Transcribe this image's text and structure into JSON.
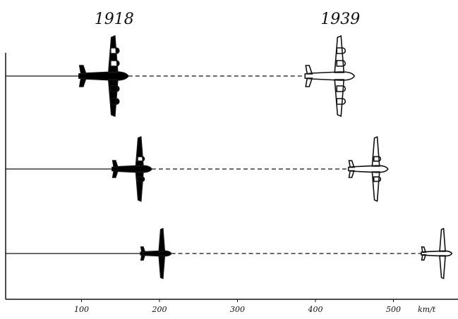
{
  "chart_data": {
    "type": "pictogram",
    "categories": [
      null,
      null,
      null
    ],
    "series": [
      {
        "name": "1918",
        "color": "#000000",
        "values": [
          160,
          190,
          215
        ]
      },
      {
        "name": "1939",
        "color": "#ffffff",
        "values": [
          450,
          493,
          575
        ]
      }
    ],
    "x_label": "km/t",
    "xlim": [
      0,
      580
    ],
    "xticks": [
      100,
      200,
      300,
      400,
      500
    ]
  }
}
